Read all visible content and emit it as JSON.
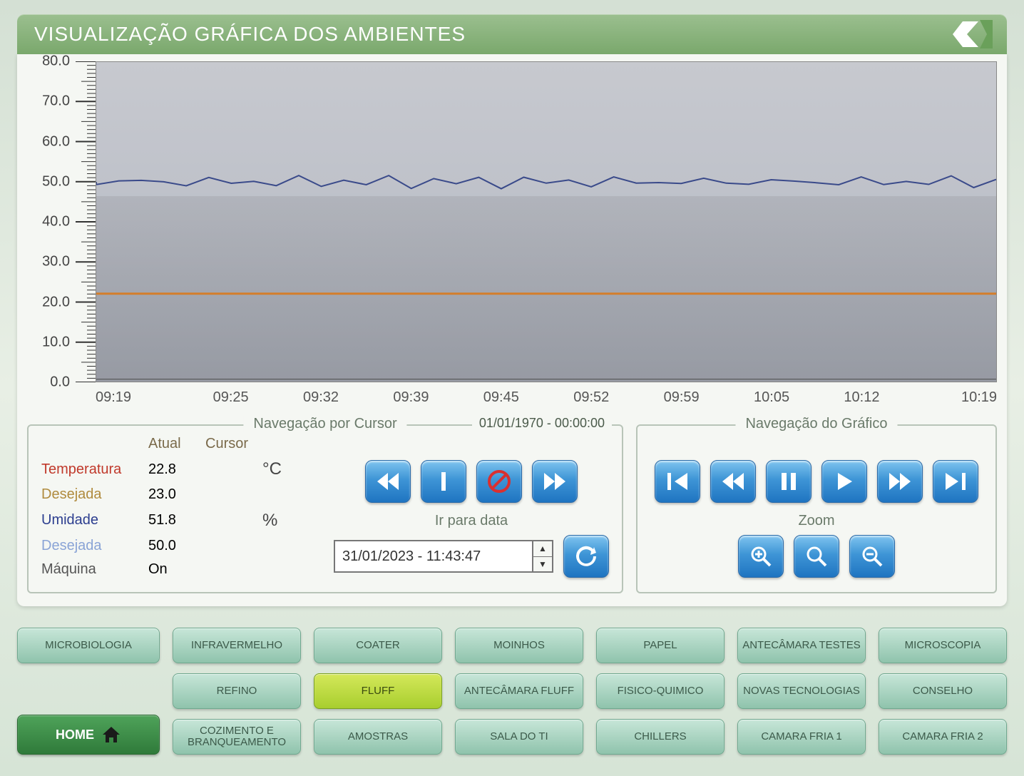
{
  "title": "VISUALIZAÇÃO GRÁFICA DOS AMBIENTES",
  "chart": {
    "type": "line",
    "ylim": [
      0,
      80
    ],
    "yticks": [
      "80.0",
      "70.0",
      "60.0",
      "50.0",
      "40.0",
      "30.0",
      "20.0",
      "10.0",
      "0.0"
    ],
    "xticks": [
      "09:19",
      "09:25",
      "09:32",
      "09:39",
      "09:45",
      "09:52",
      "09:59",
      "10:05",
      "10:12",
      "10:19"
    ],
    "background_top": "#c7c9cf",
    "background_bottom": "#a9adb7",
    "series": [
      {
        "name": "umidade",
        "color": "#3a4a8a",
        "approx_y": 50,
        "width": 2,
        "wavy": true
      },
      {
        "name": "temperatura",
        "color": "#e98b2e",
        "approx_y": 22,
        "width": 3,
        "wavy": false
      },
      {
        "name": "baseline",
        "color": "#555555",
        "approx_y": 0.6,
        "width": 1,
        "wavy": false
      }
    ]
  },
  "cursor_nav": {
    "title": "Navegação por Cursor",
    "timestamp": "01/01/1970 - 00:00:00",
    "goto_label": "Ir para data",
    "goto_value": "31/01/2023 - 11:43:47"
  },
  "graph_nav": {
    "title": "Navegação do Gráfico",
    "zoom_label": "Zoom"
  },
  "readings": {
    "hdr_atual": "Atual",
    "hdr_cursor": "Cursor",
    "rows": [
      {
        "label": "Temperatura",
        "cls": "lbl-temp",
        "atual": "22.8",
        "unit": "°C"
      },
      {
        "label": "Desejada",
        "cls": "lbl-des",
        "atual": "23.0"
      },
      {
        "label": "Umidade",
        "cls": "lbl-umid",
        "atual": "51.8",
        "unit": "%"
      },
      {
        "label": "Desejada",
        "cls": "lbl-des2",
        "atual": "50.0"
      },
      {
        "label": "Máquina",
        "cls": "lbl-maq",
        "atual": "On"
      }
    ]
  },
  "tabs": {
    "home": "HOME",
    "grid": [
      [
        "MICROBIOLOGIA",
        "INFRAVERMELHO",
        "COATER",
        "MOINHOS",
        "PAPEL",
        "ANTECÂMARA TESTES",
        "MICROSCOPIA"
      ],
      [
        "",
        "REFINO",
        "FLUFF",
        "ANTECÂMARA FLUFF",
        "FISICO-QUIMICO",
        "NOVAS TECNOLOGIAS",
        "CONSELHO"
      ],
      [
        "",
        "COZIMENTO E BRANQUEAMENTO",
        "AMOSTRAS",
        "SALA DO TI",
        "CHILLERS",
        "CAMARA FRIA 1",
        "CAMARA FRIA 2"
      ]
    ],
    "active": "FLUFF"
  }
}
